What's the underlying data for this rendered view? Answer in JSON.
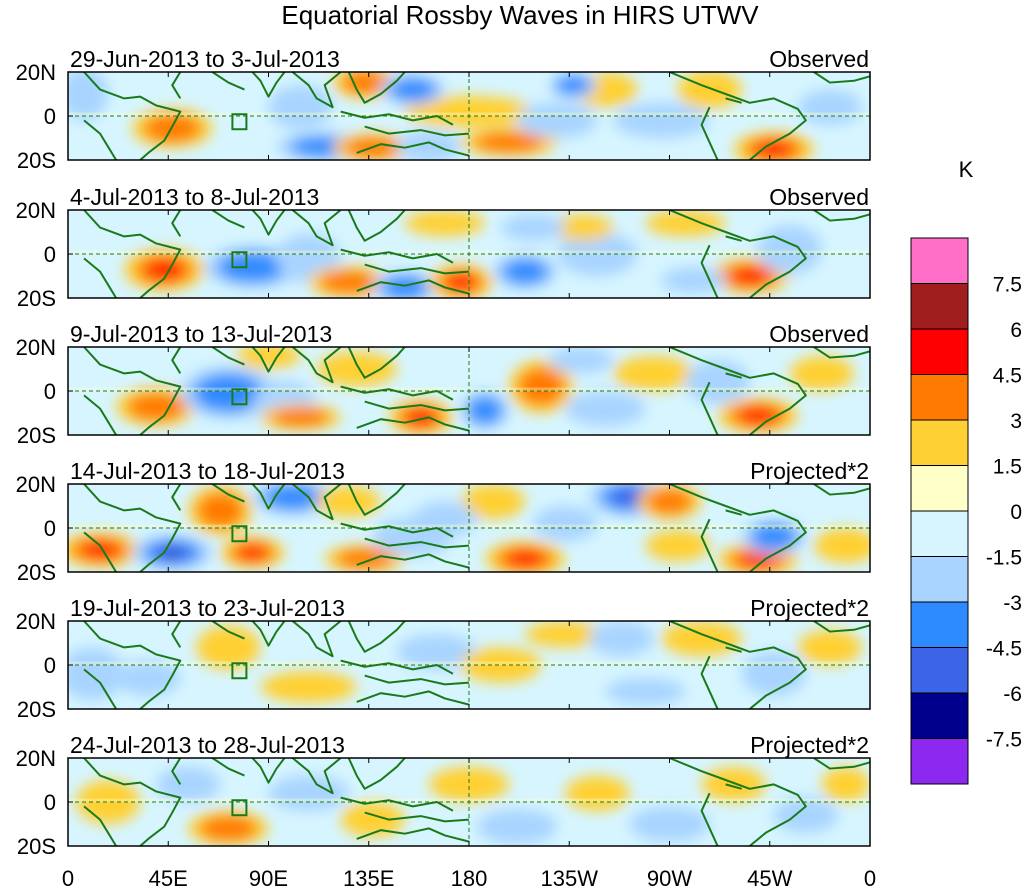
{
  "title": "Equatorial Rossby Waves in HIRS UTWV",
  "panels": [
    {
      "date_range": "29-Jun-2013 to 3-Jul-2013",
      "type": "Observed"
    },
    {
      "date_range": "4-Jul-2013 to 8-Jul-2013",
      "type": "Observed"
    },
    {
      "date_range": "9-Jul-2013 to 13-Jul-2013",
      "type": "Observed"
    },
    {
      "date_range": "14-Jul-2013 to 18-Jul-2013",
      "type": "Projected*2"
    },
    {
      "date_range": "19-Jul-2013 to 23-Jul-2013",
      "type": "Projected*2"
    },
    {
      "date_range": "24-Jul-2013 to 28-Jul-2013",
      "type": "Projected*2"
    }
  ],
  "lat_labels": [
    "20N",
    "0",
    "20S"
  ],
  "lon_labels": [
    "0",
    "45E",
    "90E",
    "135E",
    "180",
    "135W",
    "90W",
    "45W",
    "0"
  ],
  "colorbar": {
    "unit": "K",
    "colors": [
      "#ff6ec7",
      "#a01e1e",
      "#ff0000",
      "#ff7a00",
      "#ffd033",
      "#ffffc8",
      "#d6f5ff",
      "#a8d4ff",
      "#2e8bff",
      "#3c64e6",
      "#00008c",
      "#8c28f0"
    ],
    "labels": [
      "7.5",
      "6",
      "4.5",
      "3",
      "1.5",
      "0",
      "-1.5",
      "-3",
      "-4.5",
      "-6",
      "-7.5"
    ]
  },
  "map_colors": {
    "land_outline": "#1a7a1a",
    "background": "#d6f5ff"
  }
}
